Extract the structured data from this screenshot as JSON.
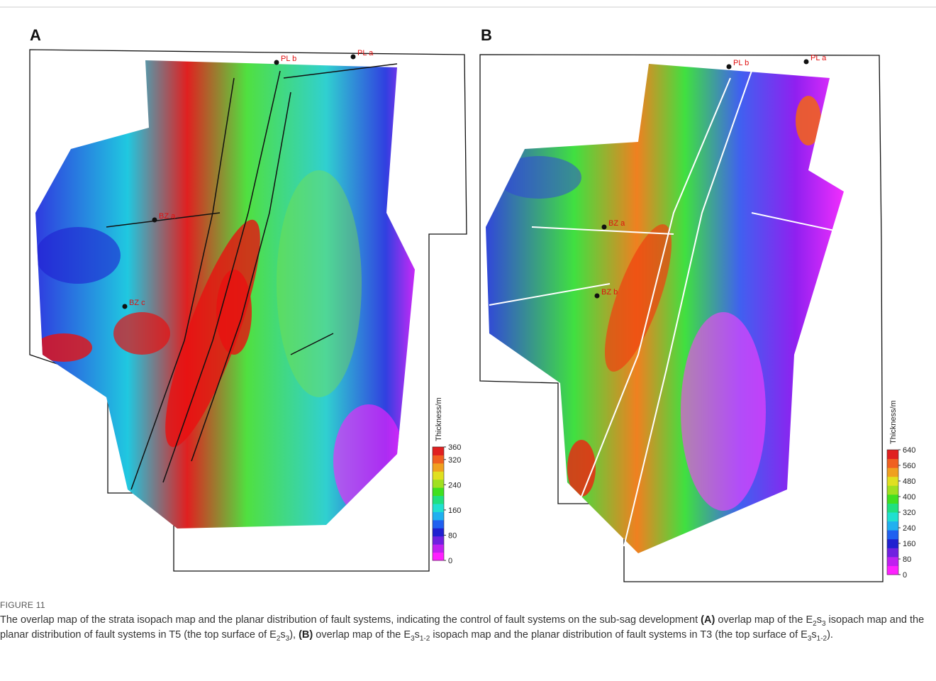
{
  "figure": {
    "panels": [
      {
        "label": "A",
        "wells": [
          "PL a",
          "PL b",
          "BZ a",
          "BZ c"
        ],
        "colorbar": {
          "title": "Thickness/m",
          "ticks": [
            0,
            80,
            160,
            240,
            320,
            360
          ],
          "lim": [
            0,
            360
          ]
        }
      },
      {
        "label": "B",
        "wells": [
          "PL a",
          "PL b",
          "BZ a",
          "BZ b"
        ],
        "colorbar": {
          "title": "Thickness/m",
          "ticks": [
            0,
            80,
            160,
            240,
            320,
            400,
            480,
            560,
            640
          ],
          "lim": [
            0,
            640
          ]
        }
      }
    ],
    "caption": {
      "label": "FIGURE 11",
      "runs": [
        {
          "t": "The overlap map of the strata isopach map and the planar distribution of fault systems, indicating the control of fault systems on the sub-sag development "
        },
        {
          "b": "(A)"
        },
        {
          "t": " overlap map of the E"
        },
        {
          "sub": "2"
        },
        {
          "t": "s"
        },
        {
          "sub": "3"
        },
        {
          "t": " isopach map and the planar distribution of fault systems in T5 (the top surface of E"
        },
        {
          "sub": "2"
        },
        {
          "t": "s"
        },
        {
          "sub": "3"
        },
        {
          "t": "), "
        },
        {
          "b": "(B)"
        },
        {
          "t": " overlap map of the E"
        },
        {
          "sub": "3"
        },
        {
          "t": "s"
        },
        {
          "sub": "1-2"
        },
        {
          "t": " isopach map and the planar distribution of fault systems in T3 (the top surface of E"
        },
        {
          "sub": "3"
        },
        {
          "t": "s"
        },
        {
          "sub": "1-2"
        },
        {
          "t": ")."
        }
      ]
    }
  }
}
